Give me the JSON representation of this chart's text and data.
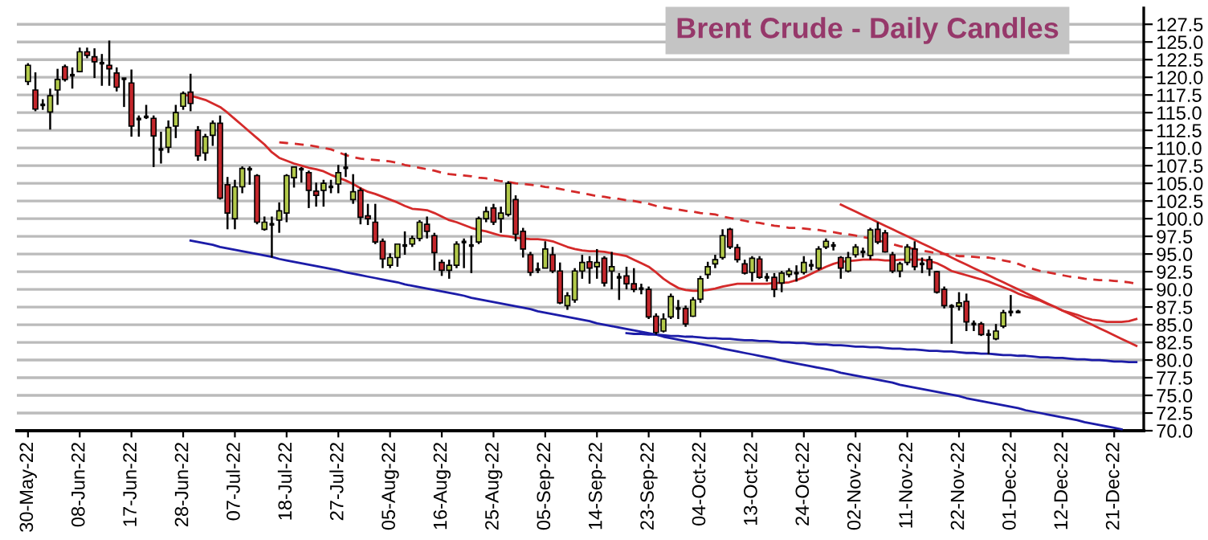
{
  "chart_data": {
    "type": "candlestick",
    "title": "Brent Crude - Daily Candles",
    "categories": [
      "30-May-22",
      null,
      null,
      null,
      null,
      null,
      null,
      "08-Jun-22",
      null,
      null,
      null,
      null,
      null,
      null,
      "17-Jun-22",
      null,
      null,
      null,
      null,
      null,
      null,
      "28-Jun-22",
      null,
      null,
      null,
      null,
      null,
      null,
      "07-Jul-22",
      null,
      null,
      null,
      null,
      null,
      null,
      "18-Jul-22",
      null,
      null,
      null,
      null,
      null,
      null,
      "27-Jul-22",
      null,
      null,
      null,
      null,
      null,
      null,
      "05-Aug-22",
      null,
      null,
      null,
      null,
      null,
      null,
      "16-Aug-22",
      null,
      null,
      null,
      null,
      null,
      null,
      "25-Aug-22",
      null,
      null,
      null,
      null,
      null,
      null,
      "05-Sep-22",
      null,
      null,
      null,
      null,
      null,
      null,
      "14-Sep-22",
      null,
      null,
      null,
      null,
      null,
      null,
      "23-Sep-22",
      null,
      null,
      null,
      null,
      null,
      null,
      "04-Oct-22",
      null,
      null,
      null,
      null,
      null,
      null,
      "13-Oct-22",
      null,
      null,
      null,
      null,
      null,
      null,
      "24-Oct-22",
      null,
      null,
      null,
      null,
      null,
      null,
      "02-Nov-22",
      null,
      null,
      null,
      null,
      null,
      null,
      "11-Nov-22",
      null,
      null,
      null,
      null,
      null,
      null,
      "22-Nov-22",
      null,
      null,
      null,
      null,
      null,
      null,
      "01-Dec-22",
      null,
      null,
      null,
      null,
      null,
      null,
      "12-Dec-22",
      null,
      null,
      null,
      null,
      null,
      null,
      "21-Dec-22",
      null,
      null,
      null,
      null
    ],
    "ohlc": [
      [
        119.4,
        122.0,
        118.9,
        121.7
      ],
      [
        118.2,
        120.7,
        115.2,
        115.5
      ],
      [
        116.1,
        116.9,
        115.4,
        116.1
      ],
      [
        115.1,
        118.4,
        112.6,
        117.4
      ],
      [
        118.2,
        121.2,
        116.1,
        119.7
      ],
      [
        121.5,
        121.8,
        119.4,
        119.7
      ],
      [
        120.3,
        121.4,
        118.4,
        120.3
      ],
      [
        120.8,
        124.2,
        120.7,
        123.6
      ],
      [
        123.6,
        124.2,
        122.7,
        123.1
      ],
      [
        122.9,
        124.1,
        119.9,
        122.2
      ],
      [
        122.0,
        123.3,
        118.8,
        122.0
      ],
      [
        121.7,
        125.2,
        118.8,
        121.2
      ],
      [
        120.6,
        121.4,
        118.0,
        118.6
      ],
      [
        119.8,
        119.9,
        115.8,
        119.8
      ],
      [
        119.2,
        121.1,
        111.6,
        113.1
      ],
      [
        114.1,
        114.6,
        111.6,
        114.1
      ],
      [
        114.4,
        116.1,
        114.1,
        114.4
      ],
      [
        114.2,
        114.6,
        107.3,
        111.7
      ],
      [
        109.8,
        112.3,
        107.8,
        109.8
      ],
      [
        110.1,
        113.9,
        109.3,
        112.9
      ],
      [
        113.1,
        116.1,
        111.4,
        115.0
      ],
      [
        115.9,
        118.0,
        115.4,
        117.7
      ],
      [
        117.9,
        120.5,
        115.2,
        116.3
      ],
      [
        112.5,
        113.1,
        108.2,
        108.9
      ],
      [
        109.3,
        112.0,
        108.2,
        111.6
      ],
      [
        111.8,
        113.9,
        110.3,
        113.5
      ],
      [
        113.5,
        114.6,
        102.7,
        102.9
      ],
      [
        104.8,
        105.9,
        98.5,
        100.8
      ],
      [
        100.0,
        105.5,
        98.5,
        104.5
      ],
      [
        104.5,
        107.4,
        103.6,
        107.1
      ],
      [
        107.0,
        107.4,
        104.8,
        107.0
      ],
      [
        106.1,
        106.3,
        99.2,
        99.5
      ],
      [
        98.5,
        100.3,
        98.3,
        99.5
      ],
      [
        99.2,
        100.3,
        94.5,
        99.2
      ],
      [
        99.8,
        102.3,
        98.0,
        101.1
      ],
      [
        100.8,
        106.3,
        99.5,
        106.1
      ],
      [
        105.8,
        107.4,
        104.4,
        107.3
      ],
      [
        107.0,
        107.3,
        105.1,
        107.0
      ],
      [
        106.5,
        106.8,
        101.5,
        104.0
      ],
      [
        103.9,
        105.1,
        101.7,
        103.3
      ],
      [
        104.0,
        105.5,
        101.7,
        105.0
      ],
      [
        104.5,
        105.5,
        103.6,
        104.5
      ],
      [
        104.9,
        107.6,
        103.6,
        106.5
      ],
      [
        107.2,
        109.3,
        105.9,
        107.2
      ],
      [
        102.7,
        106.3,
        102.1,
        103.8
      ],
      [
        104.0,
        104.4,
        99.2,
        100.2
      ],
      [
        100.4,
        102.1,
        99.1,
        100.0
      ],
      [
        99.5,
        102.1,
        96.4,
        96.7
      ],
      [
        96.8,
        97.2,
        93.0,
        94.3
      ],
      [
        93.4,
        95.1,
        93.0,
        94.5
      ],
      [
        94.5,
        96.4,
        93.2,
        96.4
      ],
      [
        96.2,
        98.2,
        94.9,
        96.2
      ],
      [
        96.4,
        97.6,
        96.0,
        97.2
      ],
      [
        97.2,
        99.8,
        96.8,
        99.5
      ],
      [
        99.2,
        100.3,
        97.2,
        98.2
      ],
      [
        97.6,
        98.0,
        92.7,
        95.2
      ],
      [
        93.8,
        94.2,
        91.9,
        92.7
      ],
      [
        92.7,
        94.2,
        91.5,
        93.4
      ],
      [
        93.4,
        96.8,
        93.0,
        96.4
      ],
      [
        96.7,
        97.2,
        93.0,
        96.7
      ],
      [
        96.2,
        97.6,
        92.3,
        96.2
      ],
      [
        96.7,
        100.3,
        96.4,
        100.0
      ],
      [
        100.0,
        101.7,
        99.5,
        101.0
      ],
      [
        101.5,
        102.1,
        99.1,
        99.5
      ],
      [
        100.0,
        101.7,
        98.0,
        100.8
      ],
      [
        100.6,
        105.3,
        100.3,
        105.0
      ],
      [
        102.7,
        103.3,
        96.8,
        97.8
      ],
      [
        98.2,
        98.7,
        94.5,
        95.7
      ],
      [
        94.9,
        95.3,
        91.9,
        92.4
      ],
      [
        92.8,
        93.8,
        92.3,
        92.8
      ],
      [
        93.0,
        96.8,
        93.0,
        95.7
      ],
      [
        94.9,
        96.0,
        92.3,
        92.6
      ],
      [
        92.6,
        93.8,
        87.9,
        88.1
      ],
      [
        87.7,
        89.6,
        87.1,
        89.1
      ],
      [
        88.5,
        93.0,
        88.1,
        92.6
      ],
      [
        92.6,
        94.9,
        91.5,
        93.8
      ],
      [
        93.9,
        94.7,
        90.8,
        93.0
      ],
      [
        93.2,
        95.7,
        91.5,
        93.8
      ],
      [
        94.4,
        94.7,
        90.4,
        90.9
      ],
      [
        92.6,
        95.3,
        90.0,
        93.2
      ],
      [
        91.7,
        92.3,
        88.5,
        91.7
      ],
      [
        91.9,
        93.2,
        90.0,
        90.8
      ],
      [
        90.8,
        93.0,
        89.6,
        90.0
      ],
      [
        90.1,
        90.8,
        89.3,
        90.1
      ],
      [
        90.0,
        90.4,
        85.8,
        86.1
      ],
      [
        86.2,
        86.6,
        83.6,
        83.9
      ],
      [
        84.1,
        86.6,
        83.9,
        85.8
      ],
      [
        86.1,
        89.4,
        85.8,
        89.0
      ],
      [
        87.3,
        88.5,
        85.8,
        87.3
      ],
      [
        87.3,
        87.7,
        84.7,
        85.1
      ],
      [
        86.2,
        88.9,
        86.1,
        88.5
      ],
      [
        88.6,
        91.9,
        88.1,
        91.5
      ],
      [
        92.1,
        93.9,
        91.5,
        93.2
      ],
      [
        93.6,
        94.9,
        93.0,
        94.2
      ],
      [
        94.5,
        98.5,
        94.2,
        97.6
      ],
      [
        98.5,
        98.7,
        95.7,
        96.0
      ],
      [
        95.9,
        96.4,
        93.8,
        94.2
      ],
      [
        93.6,
        94.2,
        92.1,
        92.3
      ],
      [
        92.4,
        94.7,
        91.1,
        94.4
      ],
      [
        94.3,
        94.7,
        91.5,
        91.7
      ],
      [
        91.7,
        92.3,
        91.1,
        91.7
      ],
      [
        91.7,
        92.3,
        88.9,
        90.0
      ],
      [
        90.9,
        92.6,
        89.6,
        92.3
      ],
      [
        92.1,
        93.0,
        91.7,
        92.6
      ],
      [
        92.3,
        93.4,
        91.1,
        92.3
      ],
      [
        92.4,
        94.7,
        92.1,
        93.8
      ],
      [
        93.4,
        94.2,
        92.7,
        93.4
      ],
      [
        93.0,
        96.1,
        92.7,
        95.7
      ],
      [
        96.0,
        97.2,
        95.7,
        96.8
      ],
      [
        96.2,
        96.7,
        95.5,
        96.2
      ],
      [
        94.5,
        94.7,
        91.5,
        93.0
      ],
      [
        92.6,
        95.3,
        92.4,
        94.5
      ],
      [
        94.9,
        96.4,
        94.5,
        96.0
      ],
      [
        95.3,
        95.9,
        94.5,
        95.3
      ],
      [
        94.8,
        98.7,
        94.2,
        98.4
      ],
      [
        98.5,
        99.5,
        96.4,
        96.7
      ],
      [
        98.0,
        98.4,
        95.2,
        95.3
      ],
      [
        94.9,
        95.3,
        92.3,
        92.6
      ],
      [
        92.6,
        93.9,
        91.7,
        93.6
      ],
      [
        93.8,
        96.4,
        93.4,
        96.0
      ],
      [
        95.7,
        96.8,
        92.7,
        93.2
      ],
      [
        93.6,
        94.5,
        92.3,
        93.6
      ],
      [
        94.2,
        94.7,
        91.9,
        92.9
      ],
      [
        92.5,
        92.6,
        89.4,
        89.6
      ],
      [
        90.0,
        90.4,
        87.3,
        87.7
      ],
      [
        87.6,
        87.9,
        82.3,
        87.6
      ],
      [
        87.6,
        89.6,
        87.0,
        88.1
      ],
      [
        88.3,
        89.4,
        84.1,
        85.4
      ],
      [
        85.1,
        85.6,
        84.1,
        85.1
      ],
      [
        85.1,
        85.4,
        83.4,
        83.6
      ],
      [
        83.6,
        84.3,
        80.8,
        83.6
      ],
      [
        83.0,
        85.1,
        82.8,
        84.1
      ],
      [
        84.8,
        87.1,
        84.5,
        86.7
      ],
      [
        86.8,
        89.2,
        86.2,
        86.8
      ],
      [
        86.8,
        87.1,
        86.6,
        86.8
      ],
      null,
      null,
      null,
      null,
      null,
      null,
      null,
      null,
      null,
      null,
      null,
      null,
      null,
      null,
      null,
      null,
      null
    ],
    "colors": [
      "#b2c94a",
      "#c3262b",
      "#000000",
      "#b2c94a",
      "#b2c94a",
      "#c3262b",
      "#000000",
      "#b2c94a",
      "#c3262b",
      "#c3262b",
      "#000000",
      "#c3262b",
      "#c3262b",
      "#000000",
      "#c3262b",
      "#000000",
      "#000000",
      "#c3262b",
      "#000000",
      "#b2c94a",
      "#b2c94a",
      "#b2c94a",
      "#c3262b",
      "#c3262b",
      "#b2c94a",
      "#b2c94a",
      "#c3262b",
      "#c3262b",
      "#b2c94a",
      "#b2c94a",
      "#000000",
      "#c3262b",
      "#b2c94a",
      "#000000",
      "#b2c94a",
      "#b2c94a",
      "#b2c94a",
      "#000000",
      "#c3262b",
      "#c3262b",
      "#b2c94a",
      "#000000",
      "#b2c94a",
      "#000000",
      "#b2c94a",
      "#c3262b",
      "#c3262b",
      "#c3262b",
      "#c3262b",
      "#b2c94a",
      "#b2c94a",
      "#000000",
      "#b2c94a",
      "#b2c94a",
      "#c3262b",
      "#c3262b",
      "#c3262b",
      "#b2c94a",
      "#b2c94a",
      "#000000",
      "#000000",
      "#b2c94a",
      "#b2c94a",
      "#c3262b",
      "#b2c94a",
      "#b2c94a",
      "#c3262b",
      "#c3262b",
      "#c3262b",
      "#000000",
      "#b2c94a",
      "#c3262b",
      "#c3262b",
      "#b2c94a",
      "#b2c94a",
      "#b2c94a",
      "#c3262b",
      "#b2c94a",
      "#c3262b",
      "#b2c94a",
      "#000000",
      "#c3262b",
      "#c3262b",
      "#000000",
      "#c3262b",
      "#c3262b",
      "#b2c94a",
      "#b2c94a",
      "#000000",
      "#c3262b",
      "#b2c94a",
      "#b2c94a",
      "#b2c94a",
      "#b2c94a",
      "#b2c94a",
      "#c3262b",
      "#c3262b",
      "#c3262b",
      "#b2c94a",
      "#c3262b",
      "#000000",
      "#c3262b",
      "#b2c94a",
      "#b2c94a",
      "#000000",
      "#b2c94a",
      "#000000",
      "#b2c94a",
      "#b2c94a",
      "#000000",
      "#c3262b",
      "#b2c94a",
      "#b2c94a",
      "#000000",
      "#b2c94a",
      "#c3262b",
      "#c3262b",
      "#c3262b",
      "#b2c94a",
      "#b2c94a",
      "#c3262b",
      "#000000",
      "#c3262b",
      "#c3262b",
      "#c3262b",
      "#000000",
      "#b2c94a",
      "#c3262b",
      "#000000",
      "#c3262b",
      "#000000",
      "#b2c94a",
      "#b2c94a",
      "#000000",
      "#000000",
      null,
      null,
      null,
      null,
      null,
      null,
      null,
      null,
      null,
      null,
      null,
      null,
      null,
      null,
      null,
      null,
      null
    ],
    "series": [
      {
        "type": "line",
        "color": "#d42a2a",
        "line_style": "solid",
        "values": [
          null,
          null,
          null,
          null,
          null,
          null,
          null,
          null,
          null,
          null,
          null,
          null,
          null,
          null,
          null,
          null,
          null,
          null,
          null,
          null,
          null,
          117.5,
          117.4,
          117.1,
          116.8,
          116.3,
          115.8,
          115.0,
          114.1,
          113.2,
          112.3,
          111.4,
          110.5,
          109.4,
          108.6,
          108.2,
          107.8,
          107.5,
          107.2,
          107.0,
          106.7,
          106.2,
          105.8,
          105.4,
          104.9,
          104.3,
          103.8,
          103.5,
          103.1,
          102.7,
          102.3,
          101.8,
          101.4,
          101.3,
          101.2,
          100.8,
          100.3,
          99.8,
          99.5,
          99.1,
          98.7,
          98.4,
          98.2,
          97.9,
          97.6,
          97.5,
          97.3,
          97.2,
          97.1,
          97.1,
          97.0,
          96.8,
          96.4,
          96.0,
          95.7,
          95.5,
          95.4,
          95.4,
          95.3,
          95.1,
          94.9,
          94.7,
          94.2,
          93.7,
          93.2,
          92.4,
          91.5,
          90.8,
          90.2,
          89.9,
          89.8,
          89.8,
          89.9,
          90.1,
          90.4,
          90.6,
          90.8,
          90.8,
          90.8,
          90.8,
          90.8,
          90.9,
          90.9,
          91.0,
          91.3,
          91.7,
          92.2,
          92.7,
          93.2,
          93.6,
          93.9,
          94.0,
          94.1,
          94.2,
          94.2,
          94.2,
          94.1,
          94.1,
          94.2,
          94.2,
          94.2,
          94.2,
          94.0,
          93.7,
          93.2,
          92.6,
          92.3,
          92.0,
          91.7,
          91.4,
          91.1,
          90.7,
          90.3,
          89.9,
          89.4,
          89.0,
          88.7,
          88.4,
          87.9,
          87.5,
          87.0,
          86.7,
          86.4,
          86.0,
          85.7,
          85.6,
          85.4,
          85.4,
          85.4,
          85.5,
          85.8,
          null
        ]
      },
      {
        "type": "line",
        "color": "#d42a2a",
        "line_style": "dashed",
        "values": [
          null,
          null,
          null,
          null,
          null,
          null,
          null,
          null,
          null,
          null,
          null,
          null,
          null,
          null,
          null,
          null,
          null,
          null,
          null,
          null,
          null,
          null,
          null,
          null,
          null,
          null,
          null,
          null,
          null,
          null,
          null,
          null,
          null,
          null,
          110.8,
          110.7,
          110.6,
          110.5,
          110.4,
          110.2,
          110.0,
          109.8,
          109.4,
          109.0,
          108.7,
          108.5,
          108.4,
          108.3,
          108.2,
          108.1,
          107.9,
          107.6,
          107.4,
          107.2,
          107.0,
          106.8,
          106.5,
          106.3,
          106.2,
          106.1,
          106.0,
          105.8,
          105.7,
          105.5,
          105.3,
          105.2,
          105.0,
          104.9,
          104.8,
          104.7,
          104.5,
          104.4,
          104.2,
          104.0,
          103.8,
          103.6,
          103.4,
          103.2,
          103.1,
          102.9,
          102.8,
          102.6,
          102.5,
          102.3,
          102.1,
          101.8,
          101.6,
          101.4,
          101.3,
          101.1,
          101.0,
          100.8,
          100.7,
          100.6,
          100.3,
          100.1,
          99.9,
          99.7,
          99.5,
          99.4,
          99.2,
          99.0,
          98.9,
          98.7,
          98.7,
          98.6,
          98.5,
          98.4,
          98.2,
          98.1,
          97.9,
          97.8,
          97.6,
          97.4,
          97.2,
          96.9,
          96.7,
          96.4,
          96.1,
          95.9,
          95.7,
          95.5,
          95.3,
          95.1,
          95.0,
          94.9,
          94.7,
          94.7,
          94.6,
          94.5,
          94.5,
          94.3,
          94.1,
          93.9,
          93.6,
          93.2,
          92.9,
          92.6,
          92.4,
          92.2,
          92.0,
          91.8,
          91.7,
          91.5,
          91.4,
          91.3,
          91.3,
          91.2,
          91.1,
          91.0,
          90.8,
          null
        ]
      },
      {
        "type": "line",
        "color": "#d42a2a",
        "line_style": "solid",
        "values": [
          null,
          null,
          null,
          null,
          null,
          null,
          null,
          null,
          null,
          null,
          null,
          null,
          null,
          null,
          null,
          null,
          null,
          null,
          null,
          null,
          null,
          null,
          null,
          null,
          null,
          null,
          null,
          null,
          null,
          null,
          null,
          null,
          null,
          null,
          null,
          null,
          null,
          null,
          null,
          null,
          null,
          null,
          null,
          null,
          null,
          null,
          null,
          null,
          null,
          null,
          null,
          null,
          null,
          null,
          null,
          null,
          null,
          null,
          null,
          null,
          null,
          null,
          null,
          null,
          null,
          null,
          null,
          null,
          null,
          null,
          null,
          null,
          null,
          null,
          null,
          null,
          null,
          null,
          null,
          null,
          null,
          null,
          null,
          null,
          null,
          null,
          null,
          null,
          null,
          null,
          null,
          null,
          null,
          null,
          null,
          null,
          null,
          null,
          null,
          null,
          null,
          null,
          null,
          null,
          null,
          null,
          null,
          null,
          null,
          null,
          102.0,
          101.5,
          101.0,
          100.5,
          100.0,
          99.5,
          99.0,
          98.5,
          98.0,
          97.5,
          97.0,
          96.5,
          96.0,
          95.5,
          95.0,
          94.5,
          94.0,
          93.5,
          93.0,
          92.5,
          92.0,
          91.5,
          91.0,
          90.5,
          90.0,
          89.5,
          89.0,
          88.5,
          88.0,
          87.5,
          87.0,
          86.5,
          86.0,
          85.5,
          85.0,
          84.5,
          84.0,
          83.5,
          83.0,
          82.5,
          82.0,
          null
        ]
      },
      {
        "type": "line",
        "color": "#1c1ca8",
        "line_style": "solid",
        "values": [
          null,
          null,
          null,
          null,
          null,
          null,
          null,
          null,
          null,
          null,
          null,
          null,
          null,
          null,
          null,
          null,
          null,
          null,
          null,
          null,
          null,
          null,
          96.9,
          96.7,
          96.5,
          96.3,
          96.0,
          95.8,
          95.6,
          95.4,
          95.2,
          95.0,
          94.8,
          94.6,
          94.3,
          94.1,
          93.9,
          93.7,
          93.5,
          93.3,
          93.1,
          92.9,
          92.7,
          92.4,
          92.2,
          92.0,
          91.8,
          91.6,
          91.4,
          91.2,
          91.0,
          90.7,
          90.5,
          90.3,
          90.1,
          89.9,
          89.7,
          89.5,
          89.3,
          89.1,
          88.8,
          88.6,
          88.4,
          88.2,
          88.0,
          87.8,
          87.6,
          87.4,
          87.2,
          86.9,
          86.7,
          86.5,
          86.3,
          86.1,
          85.9,
          85.7,
          85.5,
          85.2,
          85.0,
          84.8,
          84.6,
          84.4,
          84.2,
          84.0,
          83.8,
          83.6,
          83.3,
          83.1,
          82.9,
          82.7,
          82.5,
          82.3,
          82.1,
          81.9,
          81.6,
          81.4,
          81.2,
          81.0,
          80.8,
          80.6,
          80.4,
          80.2,
          79.9,
          79.7,
          79.5,
          79.3,
          79.1,
          78.9,
          78.7,
          78.5,
          78.2,
          78.0,
          77.8,
          77.6,
          77.4,
          77.2,
          77.0,
          76.8,
          76.5,
          76.3,
          76.1,
          75.9,
          75.7,
          75.5,
          75.3,
          75.1,
          74.9,
          74.6,
          74.4,
          74.2,
          74.0,
          73.8,
          73.6,
          73.4,
          73.2,
          72.9,
          72.7,
          72.5,
          72.3,
          72.1,
          71.9,
          71.7,
          71.5,
          71.2,
          71.0,
          70.8,
          70.6,
          70.4,
          70.2,
          null,
          null,
          null
        ]
      },
      {
        "type": "line",
        "color": "#1c1ca8",
        "line_style": "solid",
        "values": [
          null,
          null,
          null,
          null,
          null,
          null,
          null,
          null,
          null,
          null,
          null,
          null,
          null,
          null,
          null,
          null,
          null,
          null,
          null,
          null,
          null,
          null,
          null,
          null,
          null,
          null,
          null,
          null,
          null,
          null,
          null,
          null,
          null,
          null,
          null,
          null,
          null,
          null,
          null,
          null,
          null,
          null,
          null,
          null,
          null,
          null,
          null,
          null,
          null,
          null,
          null,
          null,
          null,
          null,
          null,
          null,
          null,
          null,
          null,
          null,
          null,
          null,
          null,
          null,
          null,
          null,
          null,
          null,
          null,
          null,
          null,
          null,
          null,
          null,
          null,
          null,
          null,
          null,
          null,
          null,
          null,
          83.8,
          83.7,
          83.7,
          83.6,
          83.6,
          83.5,
          83.4,
          83.4,
          83.3,
          83.3,
          83.2,
          83.1,
          83.1,
          83.0,
          83.0,
          82.9,
          82.8,
          82.8,
          82.7,
          82.7,
          82.6,
          82.5,
          82.5,
          82.4,
          82.4,
          82.3,
          82.2,
          82.2,
          82.1,
          82.1,
          82.0,
          81.9,
          81.9,
          81.8,
          81.8,
          81.7,
          81.6,
          81.6,
          81.5,
          81.5,
          81.4,
          81.3,
          81.3,
          81.2,
          81.2,
          81.1,
          81.0,
          81.0,
          80.9,
          80.9,
          80.8,
          80.7,
          80.7,
          80.6,
          80.6,
          80.5,
          80.4,
          80.4,
          80.3,
          80.3,
          80.2,
          80.1,
          80.1,
          80.0,
          80.0,
          79.9,
          79.8,
          79.8,
          79.7,
          79.7,
          null
        ]
      }
    ],
    "ylim": [
      70,
      129.8
    ],
    "yticks": [
      {
        "value": 70,
        "label": "70.0"
      },
      72.5,
      {
        "value": 75,
        "label": "75.0"
      },
      77.5,
      {
        "value": 80,
        "label": "80.0"
      },
      82.5,
      {
        "value": 85,
        "label": "85.0"
      },
      87.5,
      {
        "value": 90,
        "label": "90.0"
      },
      92.5,
      {
        "value": 95,
        "label": "95.0"
      },
      97.5,
      {
        "value": 100,
        "label": "100.0"
      },
      102.5,
      {
        "value": 105,
        "label": "105.0"
      },
      107.5,
      {
        "value": 110,
        "label": "110.0"
      },
      112.5,
      {
        "value": 115,
        "label": "115.0"
      },
      117.5,
      {
        "value": 120,
        "label": "120.0"
      },
      122.5,
      {
        "value": 125,
        "label": "125.0"
      },
      127.5
    ],
    "grid": "y"
  }
}
